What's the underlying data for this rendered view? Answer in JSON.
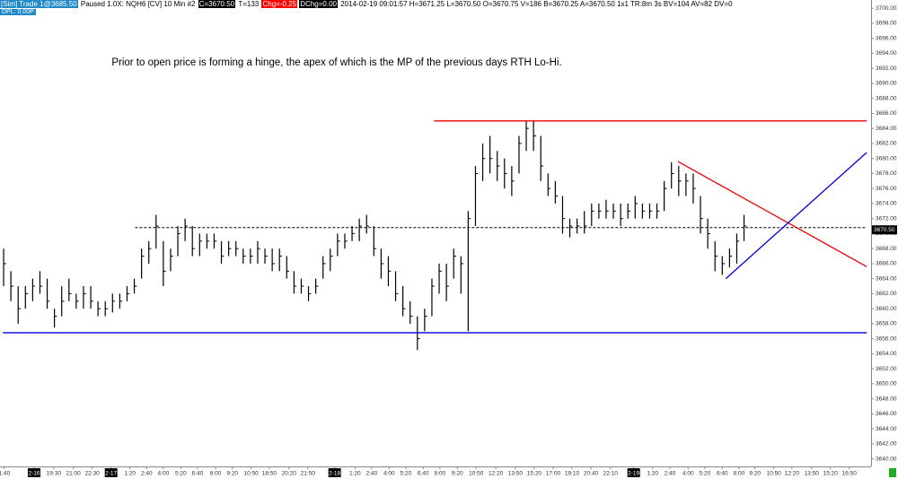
{
  "header": [
    {
      "text": "[Sim]  Trade 1@3685.50",
      "bg": "#1e88c8",
      "fg": "#ffffff"
    },
    {
      "text": "Paused 1.0X: NQH6 [CV]  10 Min  #2",
      "bg": "#ffffff",
      "fg": "#000000"
    },
    {
      "text": "C=3670.50",
      "bg": "#000000",
      "fg": "#ffffff"
    },
    {
      "text": "T=133",
      "bg": "#ffffff",
      "fg": "#000000"
    },
    {
      "text": "Chg=-0.25",
      "bg": "#ff0000",
      "fg": "#ffffff"
    },
    {
      "text": "DChg=0.00",
      "bg": "#000000",
      "fg": "#ffffff"
    },
    {
      "text": "2014-02-19 09:01:57  H=3671.25  L=3670.50  O=3670.75  V=186  B=3670.25  A=3670.50  1x1  TR:8m 3s  BV=104  AV=82  DV=0",
      "bg": "#ffffff",
      "fg": "#000000"
    }
  ],
  "header2": "DPL: 0.00P",
  "chart_data": {
    "type": "hlc",
    "annotation": "Prior to open  price is forming a hinge, the apex of which is the MP of the previous days RTH Lo-Hi.",
    "xlim": [
      0,
      120
    ],
    "ylim": [
      3639,
      3701.1
    ],
    "color": "#000000",
    "high": [
      3668,
      3665,
      3663,
      3663,
      3664,
      3665,
      3664,
      3660,
      3663,
      3664,
      3662,
      3663,
      3663,
      3661,
      3661,
      3662,
      3662,
      3663,
      3664,
      3668,
      3669,
      3672.5,
      3669,
      3668,
      3671,
      3672,
      3671,
      3670,
      3670,
      3670,
      3669,
      3669,
      3669,
      3668,
      3668,
      3669,
      3668,
      3668,
      3668,
      3667,
      3665,
      3664,
      3663,
      3664,
      3667,
      3668,
      3670,
      3670,
      3671,
      3672,
      3672.5,
      3671,
      3668,
      3667,
      3665,
      3663,
      3661,
      3659,
      3660,
      3664,
      3666,
      3666,
      3668,
      3667,
      3673,
      3679,
      3682,
      3683,
      3681,
      3680,
      3679,
      3683,
      3685,
      3685,
      3683,
      3678,
      3677,
      3675,
      3672,
      3672,
      3673,
      3674,
      3674,
      3674.5,
      3674,
      3674,
      3674,
      3675,
      3674,
      3674,
      3674,
      3677,
      3679.5,
      3679,
      3678,
      3678,
      3675,
      3672,
      3669,
      3667,
      3668,
      3670,
      3672.5
    ],
    "low": [
      3663,
      3661,
      3658,
      3660,
      3661,
      3662,
      3660,
      3657.5,
      3659,
      3661,
      3660,
      3660,
      3660,
      3659,
      3659,
      3659.5,
      3660,
      3661,
      3662,
      3664,
      3666,
      3668,
      3663,
      3665,
      3667,
      3669,
      3667,
      3667,
      3668,
      3668,
      3666,
      3667,
      3667,
      3666,
      3666,
      3666,
      3666,
      3665,
      3665,
      3664,
      3662,
      3662,
      3661,
      3662,
      3664,
      3665,
      3667,
      3668,
      3669,
      3669,
      3670,
      3667,
      3664,
      3663,
      3661,
      3659,
      3658,
      3654.5,
      3657,
      3659,
      3662,
      3661,
      3664,
      3662,
      3657,
      3671,
      3677,
      3678,
      3677,
      3676,
      3675,
      3678,
      3681,
      3681,
      3677,
      3675,
      3674,
      3670,
      3669.5,
      3670,
      3670,
      3671,
      3672,
      3672,
      3672,
      3671,
      3672,
      3672,
      3672,
      3672,
      3672,
      3673,
      3676,
      3675,
      3675,
      3674,
      3670,
      3668,
      3665,
      3664.5,
      3665.5,
      3666,
      3669
    ],
    "close": [
      3666,
      3663,
      3660,
      3662,
      3663,
      3663,
      3661,
      3659,
      3661,
      3662,
      3661,
      3662,
      3661,
      3660,
      3660,
      3661,
      3661,
      3662,
      3663,
      3667,
      3668,
      3671,
      3665,
      3667,
      3670,
      3671,
      3668,
      3669,
      3669,
      3669,
      3667,
      3668,
      3668,
      3667,
      3667,
      3668,
      3667,
      3666,
      3667,
      3665,
      3663,
      3663,
      3662,
      3663,
      3666,
      3667,
      3669,
      3669,
      3670,
      3671,
      3671,
      3668,
      3666,
      3665,
      3662,
      3660,
      3659,
      3656,
      3659,
      3663,
      3665,
      3663,
      3667,
      3666,
      3672,
      3678,
      3680,
      3680,
      3679,
      3678,
      3677,
      3682,
      3684,
      3683,
      3679,
      3676,
      3675,
      3672,
      3671,
      3671,
      3671,
      3673,
      3673,
      3673,
      3673,
      3672,
      3673,
      3674,
      3673,
      3673,
      3673,
      3676,
      3678,
      3677,
      3677,
      3676,
      3672,
      3670,
      3667,
      3666,
      3667,
      3669,
      3671
    ],
    "lines": [
      {
        "x": [
          0.4,
          119.4
        ],
        "y": [
          3656.8,
          3656.8
        ],
        "color": "#0000dd",
        "dash": false
      },
      {
        "x": [
          18.6,
          119.4
        ],
        "y": [
          3670.8,
          3670.8
        ],
        "color": "#000000",
        "dash": true
      },
      {
        "x": [
          59.8,
          119.4
        ],
        "y": [
          3685,
          3685
        ],
        "color": "#ee0000",
        "dash": false
      },
      {
        "x": [
          93.4,
          119.4
        ],
        "y": [
          3679.6,
          3665.6
        ],
        "color": "#ee0000",
        "dash": false
      },
      {
        "x": [
          100,
          119.4
        ],
        "y": [
          3664,
          3680.8
        ],
        "color": "#0000dd",
        "dash": false
      }
    ],
    "last_price": {
      "value": 3670.5,
      "label": "3670.50"
    },
    "yticks": [
      {
        "value": 3640,
        "label": "3640.00"
      },
      {
        "value": 3642,
        "label": "3642.00"
      },
      {
        "value": 3644,
        "label": "3644.00"
      },
      {
        "value": 3646,
        "label": "3646.00"
      },
      {
        "value": 3648,
        "label": "3648.00"
      },
      {
        "value": 3650,
        "label": "3650.00"
      },
      {
        "value": 3652,
        "label": "3652.00"
      },
      {
        "value": 3654,
        "label": "3654.00"
      },
      {
        "value": 3656,
        "label": "3656.00"
      },
      {
        "value": 3658,
        "label": "3658.00"
      },
      {
        "value": 3660,
        "label": "3660.00"
      },
      {
        "value": 3662,
        "label": "3662.00"
      },
      {
        "value": 3664,
        "label": "3664.00"
      },
      {
        "value": 3666,
        "label": "3666.00"
      },
      {
        "value": 3668,
        "label": "3668.00"
      },
      {
        "value": 3670,
        "label": "3670.00"
      },
      {
        "value": 3672,
        "label": "3672.00"
      },
      {
        "value": 3674,
        "label": "3674.00"
      },
      {
        "value": 3676,
        "label": "3676.00"
      },
      {
        "value": 3678,
        "label": "3678.00"
      },
      {
        "value": 3680,
        "label": "3680.00"
      },
      {
        "value": 3682,
        "label": "3682.00"
      },
      {
        "value": 3684,
        "label": "3684.00"
      },
      {
        "value": 3686,
        "label": "3686.00"
      },
      {
        "value": 3688,
        "label": "3688.00"
      },
      {
        "value": 3690,
        "label": "3690.00"
      },
      {
        "value": 3692,
        "label": "3692.00"
      },
      {
        "value": 3694,
        "label": "3694.00"
      },
      {
        "value": 3696,
        "label": "3696.00"
      },
      {
        "value": 3698,
        "label": "3698.00"
      },
      {
        "value": 3700,
        "label": "3700.00"
      }
    ],
    "xticks": [
      {
        "value": 0.6,
        "label": "1:40"
      },
      {
        "value": 4.7,
        "label": "2-16",
        "highlight": true
      },
      {
        "value": 7.4,
        "label": "19:30"
      },
      {
        "value": 10.1,
        "label": "21:00"
      },
      {
        "value": 12.7,
        "label": "22:30"
      },
      {
        "value": 15.3,
        "label": "2-17",
        "highlight": true
      },
      {
        "value": 17.9,
        "label": "1:20"
      },
      {
        "value": 20.2,
        "label": "2:40"
      },
      {
        "value": 22.5,
        "label": "4:00"
      },
      {
        "value": 24.9,
        "label": "5:20"
      },
      {
        "value": 27.2,
        "label": "6:40"
      },
      {
        "value": 29.7,
        "label": "8:00"
      },
      {
        "value": 32.0,
        "label": "9:20"
      },
      {
        "value": 34.6,
        "label": "10:50"
      },
      {
        "value": 37.1,
        "label": "18:50"
      },
      {
        "value": 39.8,
        "label": "20:20"
      },
      {
        "value": 42.4,
        "label": "21:50"
      },
      {
        "value": 46.1,
        "label": "2-18",
        "highlight": true
      },
      {
        "value": 48.9,
        "label": "1:20"
      },
      {
        "value": 51.2,
        "label": "2:40"
      },
      {
        "value": 53.6,
        "label": "4:00"
      },
      {
        "value": 55.9,
        "label": "5:20"
      },
      {
        "value": 58.3,
        "label": "6:40"
      },
      {
        "value": 60.6,
        "label": "8:00"
      },
      {
        "value": 63.0,
        "label": "9:20"
      },
      {
        "value": 65.6,
        "label": "10:50"
      },
      {
        "value": 68.3,
        "label": "12:20"
      },
      {
        "value": 71.0,
        "label": "13:50"
      },
      {
        "value": 73.6,
        "label": "15:20"
      },
      {
        "value": 76.2,
        "label": "17:00"
      },
      {
        "value": 78.8,
        "label": "19:10"
      },
      {
        "value": 81.4,
        "label": "20:40"
      },
      {
        "value": 84.1,
        "label": "22:10"
      },
      {
        "value": 87.3,
        "label": "2-19",
        "highlight": true
      },
      {
        "value": 89.9,
        "label": "1:20"
      },
      {
        "value": 92.3,
        "label": "2:40"
      },
      {
        "value": 94.8,
        "label": "4:00"
      },
      {
        "value": 97.1,
        "label": "5:20"
      },
      {
        "value": 99.5,
        "label": "6:40"
      },
      {
        "value": 101.8,
        "label": "8:00"
      },
      {
        "value": 104.0,
        "label": "9:20"
      },
      {
        "value": 106.6,
        "label": "10:50"
      },
      {
        "value": 109.1,
        "label": "12:20"
      },
      {
        "value": 111.8,
        "label": "13:50"
      },
      {
        "value": 114.4,
        "label": "15:20"
      },
      {
        "value": 117.0,
        "label": "16:50"
      }
    ]
  }
}
